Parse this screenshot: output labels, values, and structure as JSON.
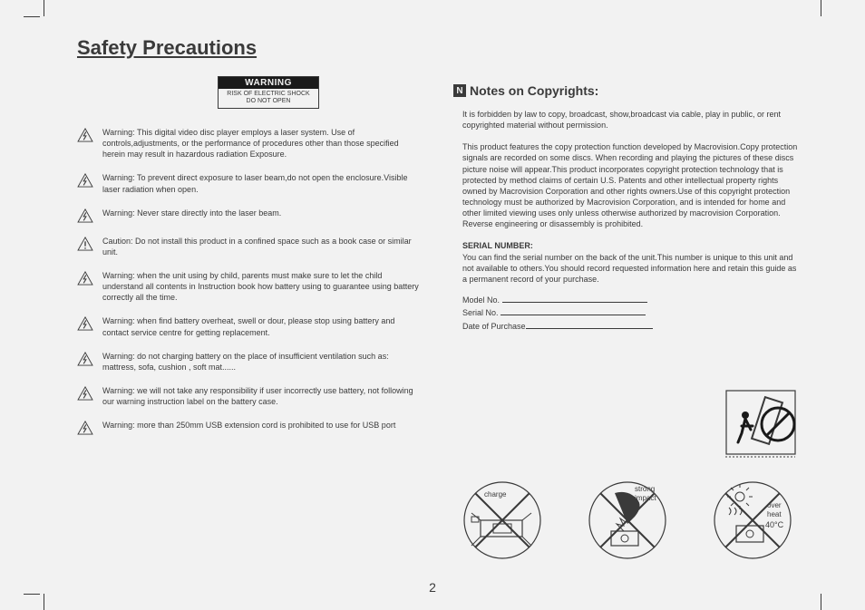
{
  "title": "Safety Precautions",
  "warning_box": {
    "header": "WARNING",
    "line1": "RISK OF ELECTRIC SHOCK",
    "line2": "DO NOT OPEN"
  },
  "left_warnings": [
    {
      "icon": "bolt",
      "text": "Warning: This digital video disc player employs a laser system. Use of controls,adjustments, or the performance of procedures other than those specified herein may result in hazardous radiation Exposure."
    },
    {
      "icon": "bolt",
      "text": "Warning: To prevent direct exposure to laser beam,do not open the enclosure.Visible laser radiation when open."
    },
    {
      "icon": "bolt",
      "text": "Warning: Never stare directly into the laser beam."
    },
    {
      "icon": "excl",
      "text": "Caution: Do not install this product in a confined space such as a book case or similar unit."
    },
    {
      "icon": "bolt",
      "text": "Warning: when the unit using by child, parents must make sure to let the child understand all contents in Instruction book how battery using to guarantee using battery correctly all the time."
    },
    {
      "icon": "bolt",
      "text": "Warning: when find battery overheat, swell or dour, please stop using battery and contact service centre for getting replacement."
    },
    {
      "icon": "bolt",
      "text": "Warning: do not charging battery on the place of insufficient ventilation such as: mattress, sofa, cushion , soft mat......"
    },
    {
      "icon": "bolt",
      "text": "Warning: we will not take any responsibility if user incorrectly use battery, not following our warning instruction label on the battery case."
    },
    {
      "icon": "bolt",
      "text": "Warning: more than 250mm USB extension cord is prohibited to use for USB port"
    }
  ],
  "notes": {
    "n_glyph": "N",
    "header": "Notes on Copyrights:",
    "p1": "It is forbidden by law to copy, broadcast, show,broadcast via cable, play in public, or rent copyrighted material without permission.",
    "p2": "This product features the copy protection function developed by Macrovision.Copy protection signals are recorded on some discs. When recording and playing the pictures of these discs picture noise will appear.This product incorporates copyright  protection technology that is protected by method claims of certain U.S. Patents and other intellectual property rights owned by Macrovision Corporation and other rights owners.Use of this copyright protection technology must be authorized by Macrovision Corporation, and is intended for home and other limited viewing uses only  unless otherwise authorized by macrovision Corporation. Reverse engineering or disassembly is prohibited.",
    "serial_header": "SERIAL NUMBER:",
    "serial_text": "You can find the serial number on the back of the unit.This number is unique to  this unit and not available to others.You should record requested information here and retain this guide as a permanent record of your purchase.",
    "fields": {
      "model": "Model No.",
      "serial": "Serial No.",
      "date": "Date of Purchase"
    }
  },
  "circle_icons": {
    "charge": "charge",
    "impact_l1": "strong",
    "impact_l2": "impact",
    "heat_l1": "over",
    "heat_l2": "heat",
    "heat_l3": "40°C"
  },
  "page_number": "2",
  "colors": {
    "bg": "#f2f2f2",
    "ink": "#3a3a3a"
  }
}
